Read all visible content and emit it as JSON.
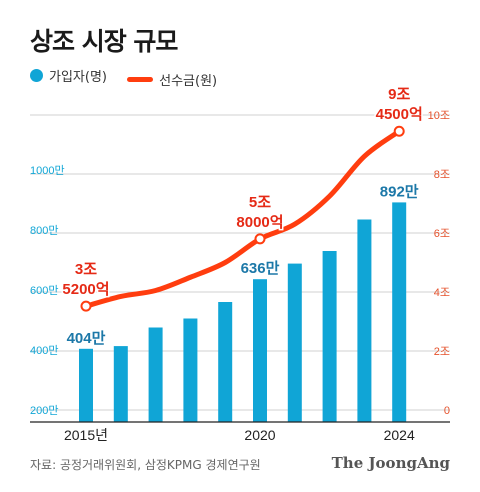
{
  "title": "상조 시장 규모",
  "source": "자료: 공정거래위원회, 삼정KPMG 경제연구원",
  "brand": "The JoongAng",
  "colors": {
    "bar": "#10a5d6",
    "line": "#ff3d0f",
    "leftAxis": "#11a6d6",
    "rightAxis": "#e5522c",
    "grid": "#d2d2d2",
    "barLabel": "#1c78a8",
    "lineLabel": "#e52a16"
  },
  "chart_data": {
    "type": "bar",
    "x": [
      2015,
      2016,
      2017,
      2018,
      2019,
      2020,
      2021,
      2022,
      2023,
      2024
    ],
    "xticks": [
      {
        "x": 2015,
        "label": "2015년"
      },
      {
        "x": 2020,
        "label": "2020"
      },
      {
        "x": 2024,
        "label": "2024"
      }
    ],
    "series": [
      {
        "name": "가입자(명)",
        "type": "bar",
        "axis": "left",
        "values": [
          404,
          413,
          475,
          505,
          560,
          636,
          688,
          730,
          835,
          892
        ]
      },
      {
        "name": "선수금(원)",
        "type": "line",
        "axis": "right",
        "values": [
          3.52,
          3.85,
          4.05,
          4.5,
          5.0,
          5.8,
          6.3,
          7.25,
          8.6,
          9.45
        ]
      }
    ],
    "y_left": {
      "unit": "만",
      "lim": [
        200,
        1000
      ],
      "ticks": [
        "200만",
        "400만",
        "600만",
        "800만",
        "1000만"
      ]
    },
    "y_right": {
      "unit": "조",
      "lim": [
        0,
        10
      ],
      "ticks": [
        "0",
        "2조",
        "4조",
        "6조",
        "8조",
        "10조"
      ]
    },
    "bar_labels": [
      {
        "x": 2015,
        "text": "404만"
      },
      {
        "x": 2020,
        "text": "636만"
      },
      {
        "x": 2024,
        "text": "892만"
      }
    ],
    "line_labels": [
      {
        "x": 2015,
        "lines": [
          "3조",
          "5200억"
        ]
      },
      {
        "x": 2020,
        "lines": [
          "5조",
          "8000억"
        ]
      },
      {
        "x": 2024,
        "lines": [
          "9조",
          "4500억"
        ]
      }
    ],
    "line_markers": [
      2015,
      2020,
      2024
    ],
    "grid": true,
    "legend_position": "top-left"
  }
}
